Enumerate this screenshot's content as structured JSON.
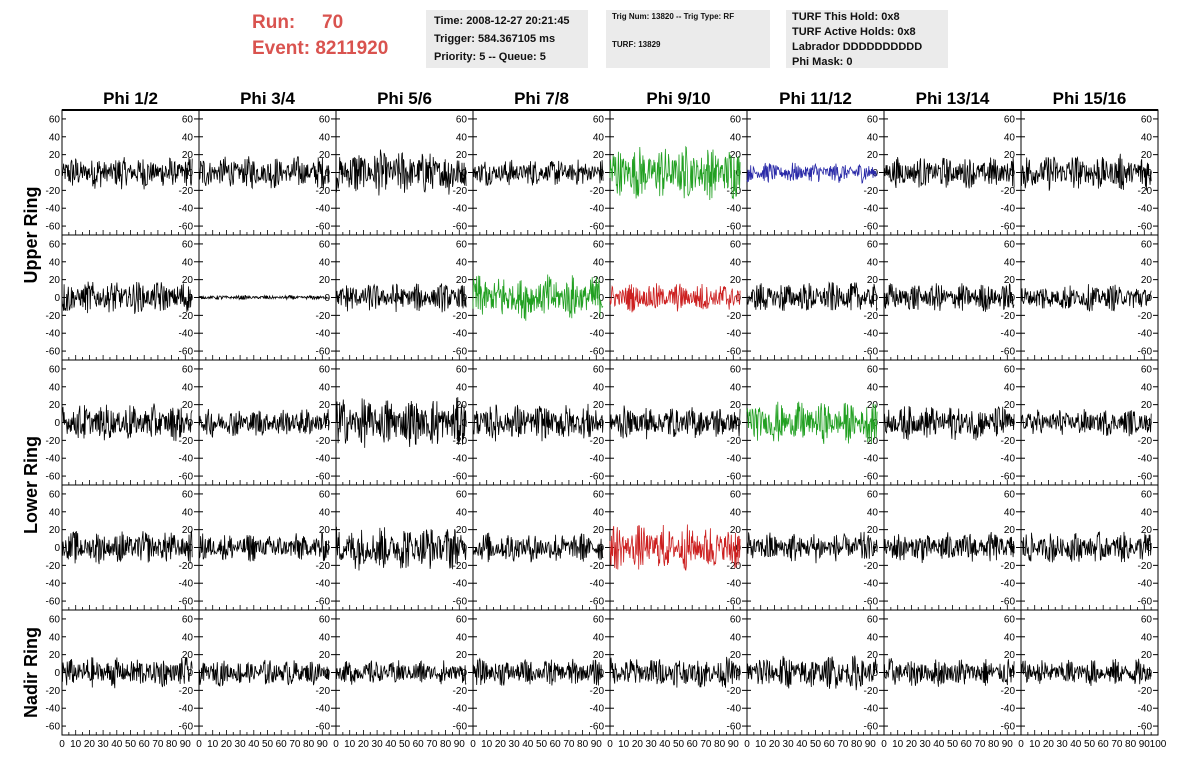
{
  "header": {
    "run_label": "Run:",
    "run_value": "70",
    "event_label": "Event:",
    "event_value": "8211920",
    "info_box_1": [
      "Time: 2008-12-27 20:21:45",
      "Trigger: 584.367105 ms",
      "Priority: 5 -- Queue: 5"
    ],
    "info_box_2": [
      "Trig Num: 13820 -- Trig Type: RF",
      "TURF: 13829"
    ],
    "info_box_3": [
      "TURF This Hold: 0x8",
      "TURF Active Holds: 0x8",
      "Labrador DDDDDDDDDD",
      "Phi Mask: 0"
    ]
  },
  "chart_data": {
    "type": "line",
    "columns": [
      "Phi 1/2",
      "Phi 3/4",
      "Phi 5/6",
      "Phi 7/8",
      "Phi 9/10",
      "Phi 11/12",
      "Phi 13/14",
      "Phi 15/16"
    ],
    "rows": [
      "Upper Ring",
      "Upper Ring",
      "Lower Ring",
      "Lower Ring",
      "Nadir Ring"
    ],
    "row_labels": [
      "Upper Ring",
      "Lower Ring",
      "Nadir Ring"
    ],
    "xlim": [
      0,
      100
    ],
    "ylim": [
      -70,
      70
    ],
    "y_ticks": [
      60,
      40,
      20,
      0,
      -20,
      -40,
      -60
    ],
    "x_ticks": [
      0,
      10,
      20,
      30,
      40,
      50,
      60,
      70,
      80,
      90,
      100
    ],
    "trace_colors": {
      "default": "#000000",
      "green": "#22a022",
      "blue": "#2a2aa8",
      "red": "#cc2020"
    },
    "highlighted_traces": [
      {
        "row": 0,
        "col": 4,
        "color": "green"
      },
      {
        "row": 0,
        "col": 5,
        "color": "blue"
      },
      {
        "row": 1,
        "col": 3,
        "color": "green"
      },
      {
        "row": 1,
        "col": 4,
        "color": "red"
      },
      {
        "row": 2,
        "col": 5,
        "color": "green"
      },
      {
        "row": 3,
        "col": 4,
        "color": "red"
      }
    ],
    "trace_amplitudes": [
      [
        16,
        16,
        22,
        13,
        26,
        10,
        15,
        18
      ],
      [
        16,
        2,
        14,
        22,
        14,
        15,
        14,
        13
      ],
      [
        18,
        14,
        24,
        18,
        16,
        20,
        17,
        13
      ],
      [
        16,
        14,
        22,
        15,
        22,
        15,
        15,
        15
      ],
      [
        15,
        13,
        12,
        13,
        15,
        17,
        14,
        13
      ]
    ]
  }
}
